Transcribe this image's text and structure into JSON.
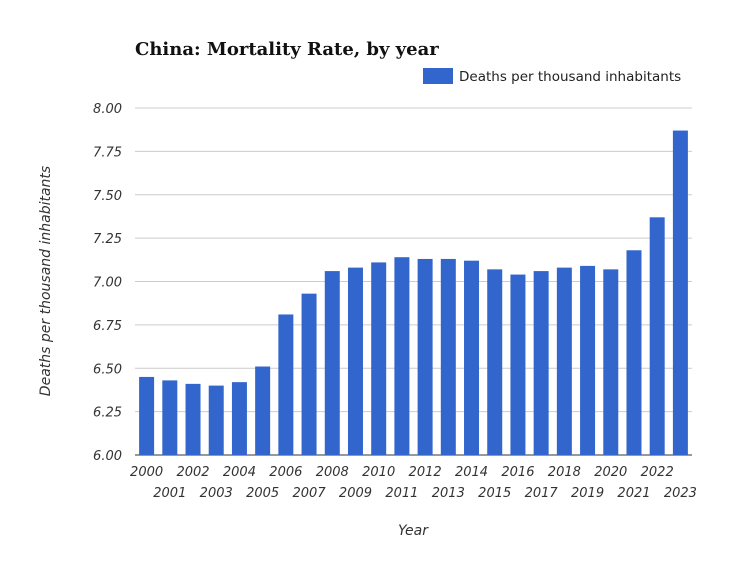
{
  "chart_data": {
    "type": "bar",
    "title": "China: Mortality Rate, by year",
    "xlabel": "Year",
    "ylabel": "Deaths per thousand inhabitants",
    "ylim": [
      6.0,
      8.0
    ],
    "yticks": [
      "6.00",
      "6.25",
      "6.50",
      "6.75",
      "7.00",
      "7.25",
      "7.50",
      "7.75",
      "8.00"
    ],
    "grid": true,
    "legend_position": "top-right",
    "categories": [
      "2000",
      "2001",
      "2002",
      "2003",
      "2004",
      "2005",
      "2006",
      "2007",
      "2008",
      "2009",
      "2010",
      "2011",
      "2012",
      "2013",
      "2014",
      "2015",
      "2016",
      "2017",
      "2018",
      "2019",
      "2020",
      "2021",
      "2022",
      "2023"
    ],
    "series": [
      {
        "name": "Deaths per thousand inhabitants",
        "color": "#3366cc",
        "values": [
          6.45,
          6.43,
          6.41,
          6.4,
          6.42,
          6.51,
          6.81,
          6.93,
          7.06,
          7.08,
          7.11,
          7.14,
          7.13,
          7.13,
          7.12,
          7.07,
          7.04,
          7.06,
          7.08,
          7.09,
          7.07,
          7.18,
          7.37,
          7.87
        ]
      }
    ]
  }
}
